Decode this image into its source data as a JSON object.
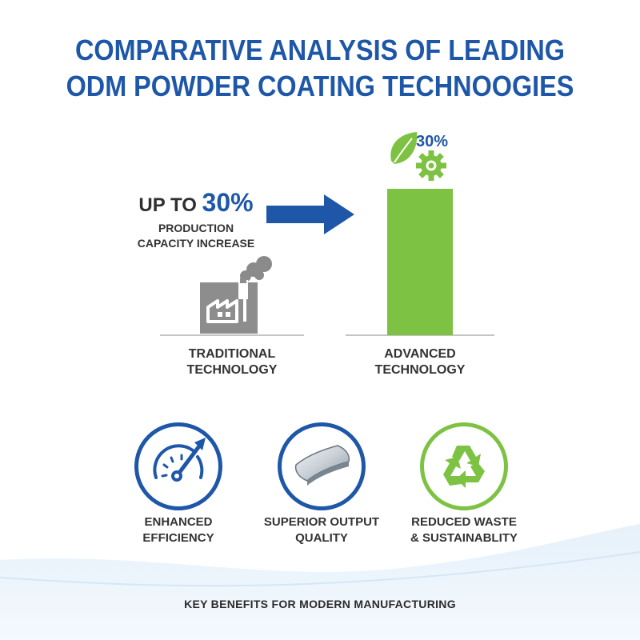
{
  "title_line1": "COMPARATIVE ANALYSIS OF LEADING",
  "title_line2": "ODM POWDER COATING TECHNOOGIES",
  "increase": {
    "prefix": "UP TO ",
    "value": "30%",
    "line1": "PRODUCTION",
    "line2": "CAPACITY INCREASE"
  },
  "bar_label": "30%",
  "traditional": {
    "line1": "TRADITIONAL",
    "line2": "TECHNOLOGY"
  },
  "advanced": {
    "line1": "ADVANCED",
    "line2": "TECHNOLOGY"
  },
  "benefits": [
    {
      "icon": "speedometer-icon",
      "line1": "ENHANCED",
      "line2": "EFFICIENCY"
    },
    {
      "icon": "coated-sheet-icon",
      "line1": "SUPERIOR OUTPUT",
      "line2": "QUALITY"
    },
    {
      "icon": "recycle-icon",
      "line1": "REDUCED WASTE",
      "line2": "& SUSTAINABLITY"
    }
  ],
  "footer": "KEY BENEFITS FOR MODERN MANUFACTURING",
  "colors": {
    "blue": "#1e57a8",
    "green": "#7dc242",
    "gray": "#8d8d8d",
    "text": "#333333"
  }
}
